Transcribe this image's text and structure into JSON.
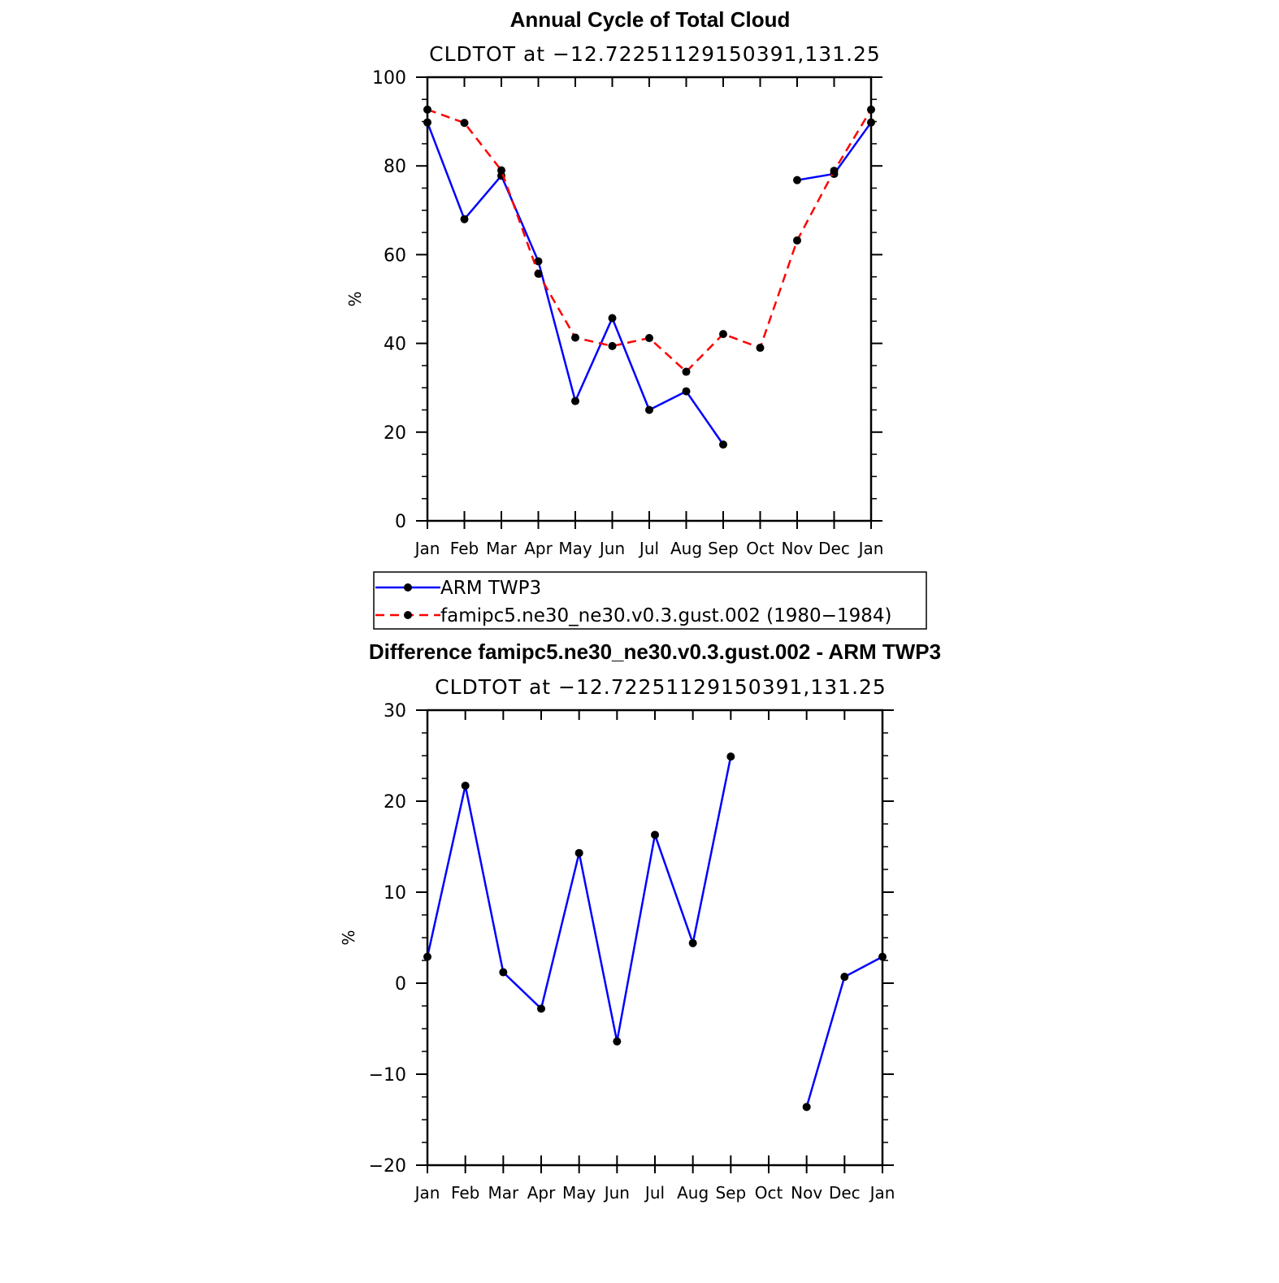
{
  "chart_data": [
    {
      "type": "line",
      "title": "Annual Cycle of Total Cloud",
      "subtitle": "CLDTOT at −12.72251129150391,131.25",
      "xlabel": "",
      "ylabel": "%",
      "ylim": [
        0,
        100
      ],
      "yticks": [
        "0",
        "20",
        "40",
        "60",
        "80",
        "100"
      ],
      "categories": [
        "Jan",
        "Feb",
        "Mar",
        "Apr",
        "May",
        "Jun",
        "Jul",
        "Aug",
        "Sep",
        "Oct",
        "Nov",
        "Dec",
        "Jan"
      ],
      "grid": false,
      "legend_position": "bottom",
      "series": [
        {
          "name": "ARM TWP3",
          "color": "#0000ff",
          "dash": "solid",
          "values": [
            89.8,
            68.0,
            77.8,
            58.5,
            27.0,
            45.7,
            25.0,
            29.2,
            17.2,
            null,
            76.8,
            78.2,
            89.8
          ]
        },
        {
          "name": "famipc5.ne30_ne30.v0.3.gust.002 (1980−1984)",
          "color": "#ff0000",
          "dash": "dashed",
          "values": [
            92.7,
            89.7,
            79.0,
            55.7,
            41.3,
            39.4,
            41.2,
            33.6,
            42.1,
            39.0,
            63.2,
            78.9,
            92.7
          ]
        }
      ]
    },
    {
      "type": "line",
      "title": "Difference famipc5.ne30_ne30.v0.3.gust.002 - ARM TWP3",
      "subtitle": "CLDTOT at −12.72251129150391,131.25",
      "xlabel": "",
      "ylabel": "%",
      "ylim": [
        -20,
        30
      ],
      "yticks": [
        "−20",
        "−10",
        "0",
        "10",
        "20",
        "30"
      ],
      "categories": [
        "Jan",
        "Feb",
        "Mar",
        "Apr",
        "May",
        "Jun",
        "Jul",
        "Aug",
        "Sep",
        "Oct",
        "Nov",
        "Dec",
        "Jan"
      ],
      "grid": false,
      "series": [
        {
          "color": "#0000ff",
          "dash": "solid",
          "values": [
            2.9,
            21.7,
            1.2,
            -2.8,
            14.3,
            -6.4,
            16.3,
            4.4,
            24.9,
            null,
            -13.6,
            0.7,
            2.9
          ]
        }
      ]
    }
  ]
}
